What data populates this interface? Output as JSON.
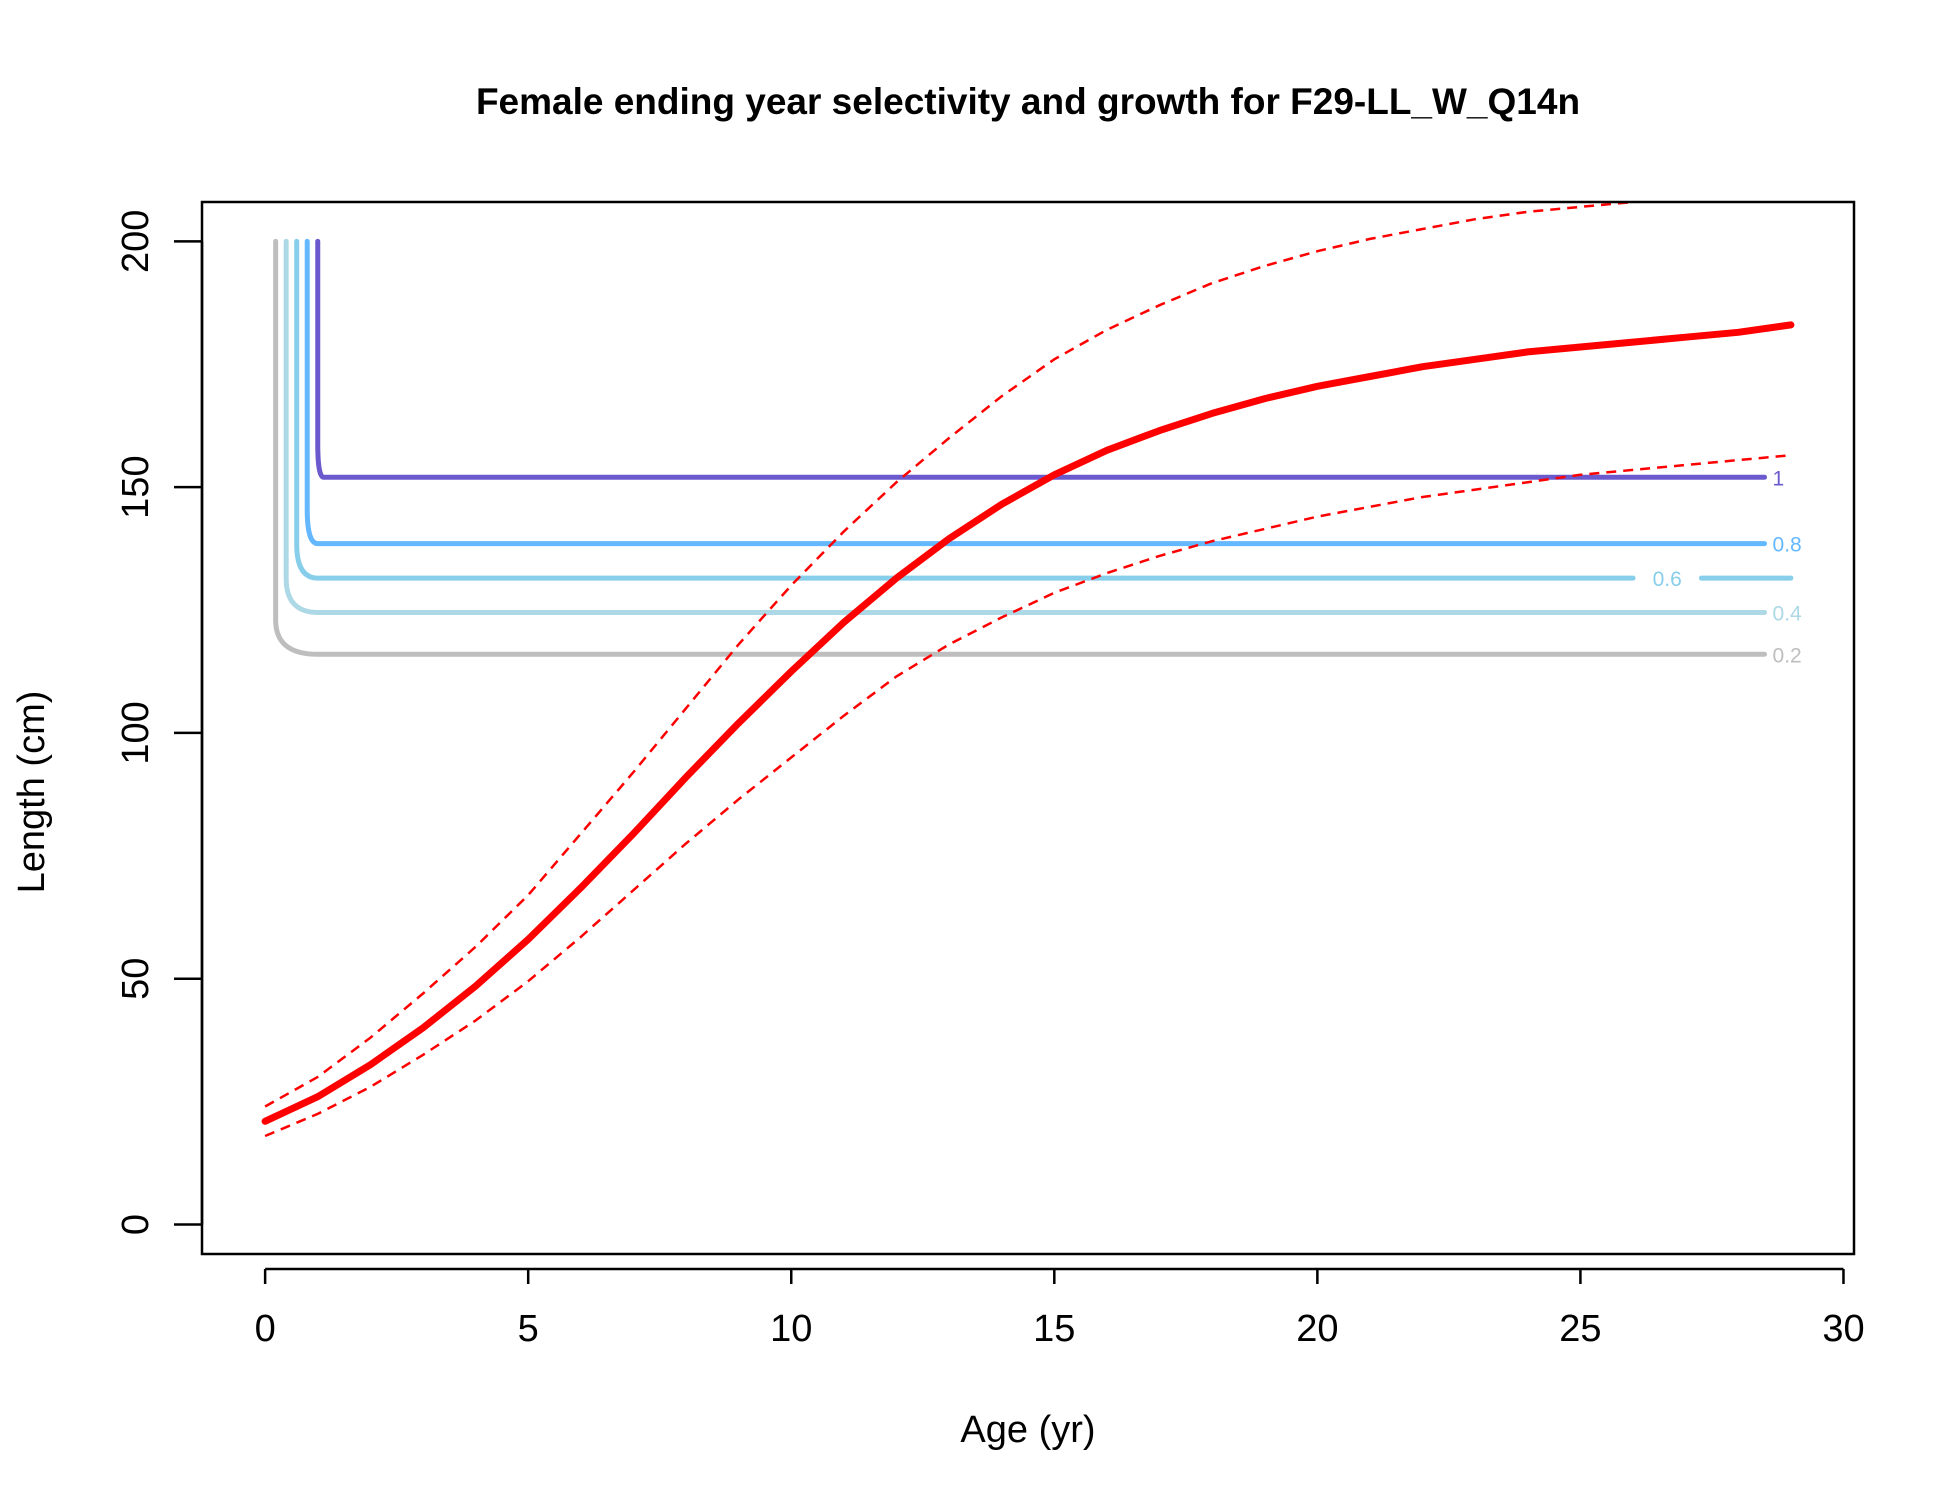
{
  "chart_data": {
    "type": "line",
    "title": "Female ending year selectivity and growth for F29-LL_W_Q14n",
    "xlabel": "Age (yr)",
    "ylabel": "Length (cm)",
    "xlim": [
      -1.2,
      30.2
    ],
    "ylim": [
      -6,
      208
    ],
    "x_ticks": [
      0,
      5,
      10,
      15,
      20,
      25,
      30
    ],
    "y_ticks": [
      0,
      50,
      100,
      150,
      200
    ],
    "grid": false,
    "legend": "none",
    "colors": {
      "growth": "#ff0000",
      "contour_1": "#6a5acd",
      "contour_0_8": "#63b8ff",
      "contour_0_6": "#87ceeb",
      "contour_0_4": "#add8e6",
      "contour_0_2": "#bebebe"
    },
    "growth_mean": {
      "x": [
        0,
        1,
        2,
        3,
        4,
        5,
        6,
        7,
        8,
        9,
        10,
        11,
        12,
        13,
        14,
        15,
        16,
        17,
        18,
        19,
        20,
        21,
        22,
        23,
        24,
        25,
        26,
        27,
        28,
        29
      ],
      "y": [
        21,
        26,
        32.5,
        40,
        48.5,
        58,
        68.5,
        79.5,
        91,
        102,
        112.5,
        122.5,
        131.5,
        139.5,
        146.5,
        152.5,
        157.5,
        161.5,
        165,
        168,
        170.5,
        172.5,
        174.5,
        176,
        177.5,
        178.5,
        179.5,
        180.5,
        181.5,
        183
      ]
    },
    "growth_upper": {
      "x": [
        0,
        1,
        2,
        3,
        4,
        5,
        6,
        7,
        8,
        9,
        10,
        11,
        12,
        13,
        14,
        15,
        16,
        17,
        18,
        19,
        20,
        21,
        22,
        23,
        24,
        25,
        26,
        27,
        28,
        29
      ],
      "y": [
        24,
        30,
        38,
        47,
        56.5,
        67,
        79.5,
        92,
        105,
        118,
        130,
        141,
        151,
        160,
        168.5,
        176,
        182,
        187,
        191.5,
        195,
        198,
        200.5,
        202.5,
        204.5,
        206,
        207,
        208,
        209,
        209.5,
        210
      ]
    },
    "growth_lower": {
      "x": [
        0,
        1,
        2,
        3,
        4,
        5,
        6,
        7,
        8,
        9,
        10,
        11,
        12,
        13,
        14,
        15,
        16,
        17,
        18,
        19,
        20,
        21,
        22,
        23,
        24,
        25,
        26,
        27,
        28,
        29
      ],
      "y": [
        18,
        22.5,
        28,
        34.5,
        41.5,
        49.5,
        58.5,
        68,
        77.5,
        86.5,
        95,
        103.5,
        111.5,
        118,
        123.5,
        128.5,
        132.5,
        136,
        139,
        141.5,
        144,
        146,
        148,
        149.5,
        151,
        152.5,
        153.5,
        154.5,
        155.5,
        156.5
      ]
    },
    "selectivity_contours": [
      {
        "level": "1",
        "vertical_x": 1.0,
        "length": 152,
        "x_end": 28.5,
        "color": "#6a5acd"
      },
      {
        "level": "0.8",
        "vertical_x": 0.8,
        "length": 138.5,
        "x_end": 28.5,
        "color": "#63b8ff"
      },
      {
        "level": "0.6",
        "vertical_x": 0.6,
        "length": 131.5,
        "x_end": 29.0,
        "color": "#87ceeb"
      },
      {
        "level": "0.4",
        "vertical_x": 0.4,
        "length": 124.5,
        "x_end": 28.5,
        "color": "#add8e6"
      },
      {
        "level": "0.2",
        "vertical_x": 0.2,
        "length": 116,
        "x_end": 28.5,
        "color": "#bebebe"
      }
    ],
    "contour_top_length": 200
  }
}
